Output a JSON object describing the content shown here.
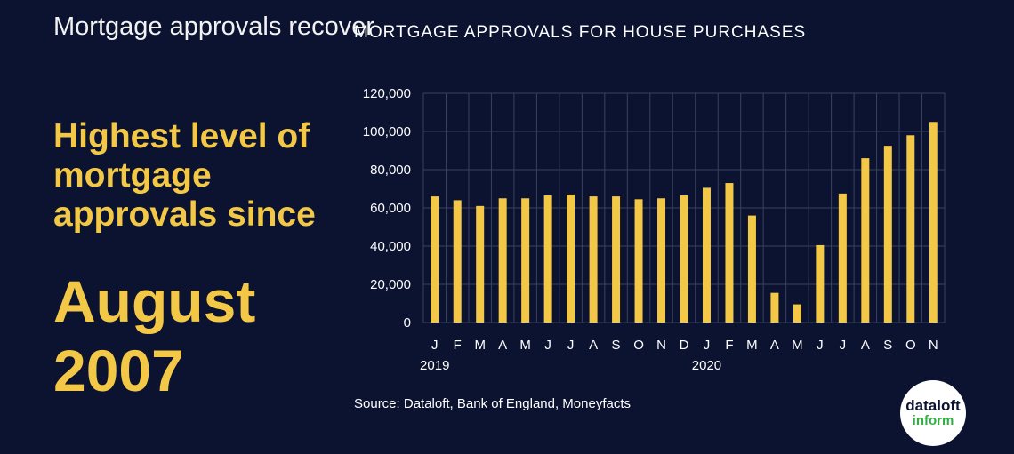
{
  "headline": "Mortgage approvals recover",
  "highlight": "Highest level of mortgage approvals since",
  "highlight_big": "August 2007",
  "source": "Source: Dataloft, Bank of England, Moneyfacts",
  "logo": {
    "line1": "dataloft",
    "line2": "inform"
  },
  "colors": {
    "background": "#0b1330",
    "accent": "#f3c846",
    "logo_green": "#2eaf3f"
  },
  "chart_data": {
    "type": "bar",
    "title": "MORTGAGE APPROVALS FOR HOUSE PURCHASES",
    "xlabel": "",
    "ylabel": "",
    "categories": [
      "J",
      "F",
      "M",
      "A",
      "M",
      "J",
      "J",
      "A",
      "S",
      "O",
      "N",
      "D",
      "J",
      "F",
      "M",
      "A",
      "M",
      "J",
      "J",
      "A",
      "S",
      "O",
      "N"
    ],
    "year_labels": [
      {
        "index": 0,
        "label": "2019"
      },
      {
        "index": 12,
        "label": "2020"
      }
    ],
    "values": [
      66000,
      64000,
      61000,
      65000,
      65000,
      66500,
      67000,
      66000,
      66000,
      64500,
      65000,
      66500,
      70500,
      73000,
      56000,
      15500,
      9500,
      40500,
      67500,
      86000,
      92500,
      98000,
      105000
    ],
    "ylim": [
      0,
      120000
    ],
    "yticks": [
      0,
      20000,
      40000,
      60000,
      80000,
      100000,
      120000
    ],
    "ytick_labels": [
      "0",
      "20,000",
      "40,000",
      "60,000",
      "80,000",
      "100,000",
      "120,000"
    ],
    "grid": true
  }
}
